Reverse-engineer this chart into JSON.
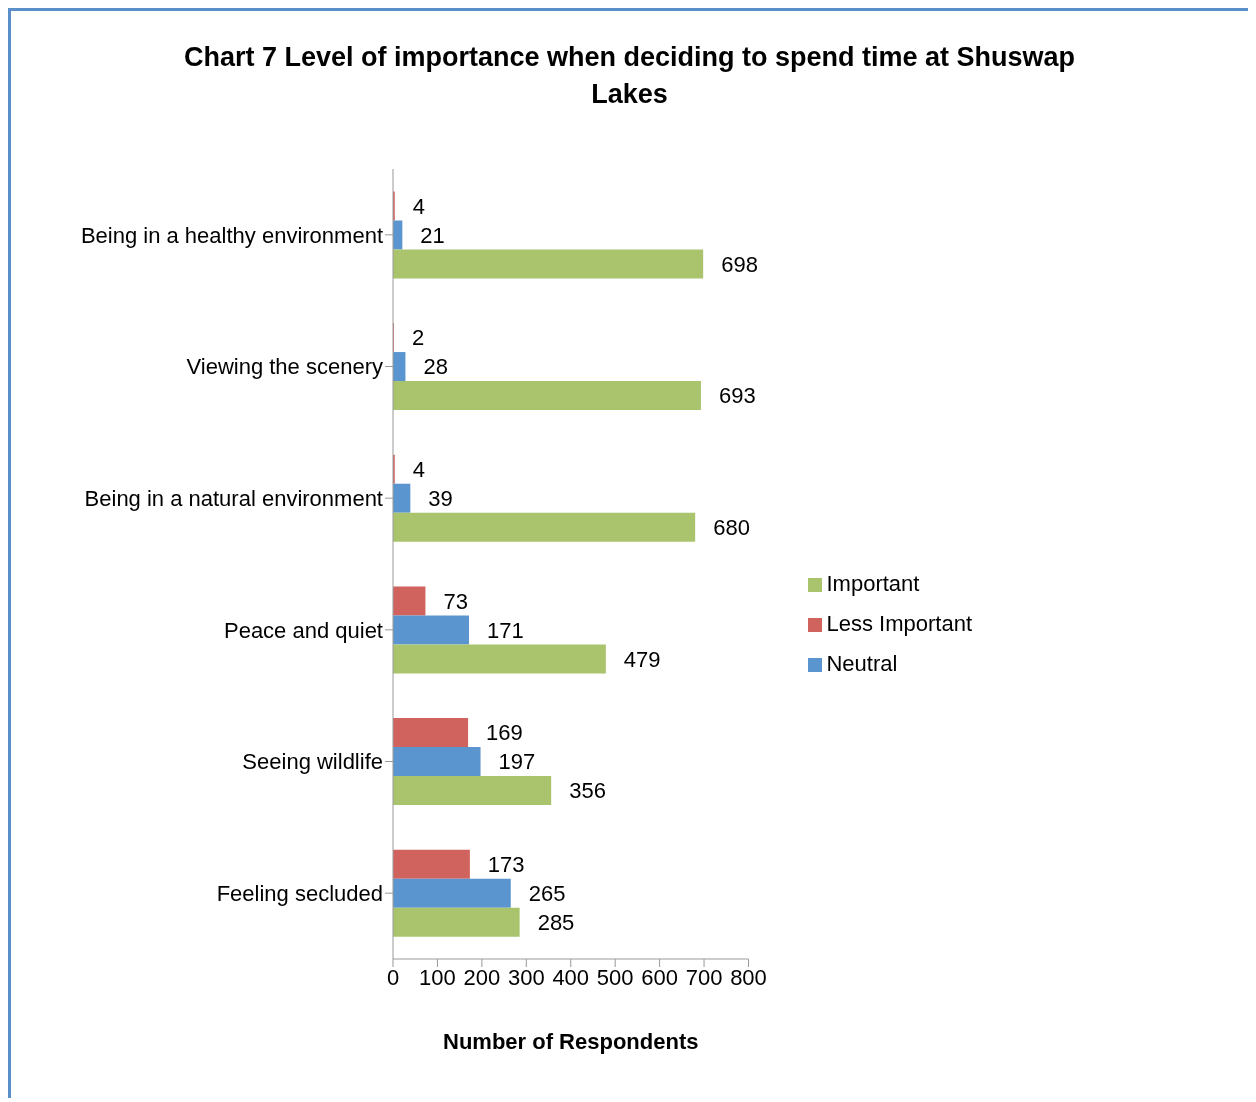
{
  "chart_data": {
    "type": "bar",
    "orientation": "horizontal",
    "title": "Chart 7 Level of importance when deciding to spend time at Shuswap Lakes",
    "xlabel": "Number of Respondents",
    "categories": [
      "Being in a healthy environment",
      "Viewing the scenery",
      "Being in a natural environment",
      "Peace and quiet",
      "Seeing wildlife",
      "Feeling secluded"
    ],
    "series": [
      {
        "name": "Less Important",
        "color": "#d0635e",
        "values": [
          4,
          2,
          4,
          73,
          169,
          173
        ]
      },
      {
        "name": "Neutral",
        "color": "#5b95cf",
        "values": [
          21,
          28,
          39,
          171,
          197,
          265
        ]
      },
      {
        "name": "Important",
        "color": "#a9c46c",
        "values": [
          698,
          693,
          680,
          479,
          356,
          285
        ]
      }
    ],
    "xlim": [
      0,
      800
    ],
    "xticks": [
      0,
      100,
      200,
      300,
      400,
      500,
      600,
      700,
      800
    ],
    "grid": false,
    "legend": "right",
    "data_labels": true
  }
}
